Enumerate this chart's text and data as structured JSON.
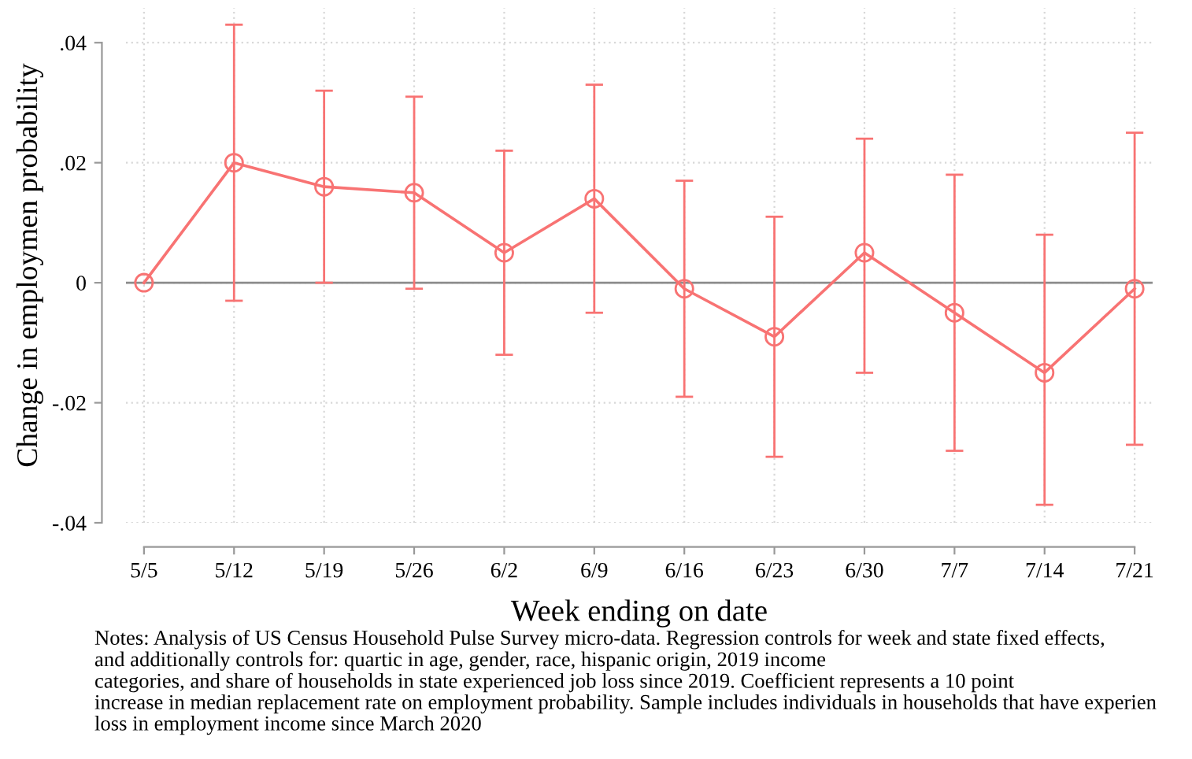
{
  "chart_data": {
    "type": "line",
    "xlabel": "Week ending on date",
    "ylabel": "Change in employmen probability",
    "categories": [
      "5/5",
      "5/12",
      "5/19",
      "5/26",
      "6/2",
      "6/9",
      "6/16",
      "6/23",
      "6/30",
      "7/7",
      "7/14",
      "7/21"
    ],
    "series": [
      {
        "color": "#f87373",
        "values": [
          0,
          0.02,
          0.016,
          0.015,
          0.005,
          0.014,
          -0.001,
          -0.009,
          0.005,
          -0.005,
          -0.015,
          -0.001
        ],
        "errors": [
          null,
          [
            -0.003,
            0.043
          ],
          [
            0.0,
            0.032
          ],
          [
            -0.001,
            0.031
          ],
          [
            -0.012,
            0.022
          ],
          [
            -0.005,
            0.033
          ],
          [
            -0.019,
            0.017
          ],
          [
            -0.029,
            0.011
          ],
          [
            -0.015,
            0.024
          ],
          [
            -0.028,
            0.018
          ],
          [
            -0.037,
            0.008
          ],
          [
            -0.027,
            0.025
          ]
        ]
      }
    ],
    "ylim": [
      -0.04,
      0.0458
    ],
    "yticks": [
      {
        "value": -0.04,
        "label": "-.04"
      },
      {
        "value": -0.02,
        "label": "-.02"
      },
      {
        "value": 0,
        "label": "0"
      },
      {
        "value": 0.02,
        "label": ".02"
      },
      {
        "value": 0.04,
        "label": ".04"
      }
    ],
    "ref_lines": [
      {
        "axis": "y",
        "value": 0,
        "color": "#8c8c8c",
        "line_style": "solid"
      }
    ],
    "grid": true,
    "marker": "circle",
    "line_style": "solid",
    "annotations": [
      "Notes: Analysis of US Census Household Pulse Survey micro-data. Regression controls for week and state fixed effects,\nand additionally controls for: quartic in age, gender, race, hispanic origin, 2019 income\ncategories, and share of households in state experienced job loss since 2019. Coefficient represents a 10 point\nincrease in median replacement rate on employment probability. Sample includes individuals in households that have experien\nloss in employment income since March 2020"
    ]
  }
}
